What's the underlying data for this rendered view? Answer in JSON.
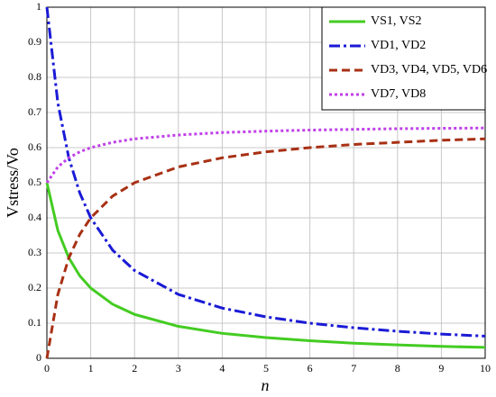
{
  "chart_data": {
    "type": "line",
    "xlabel": "n",
    "ylabel": "Vstress/Vo",
    "x": [
      0,
      0.25,
      0.5,
      0.75,
      1,
      1.5,
      2,
      3,
      4,
      5,
      6,
      7,
      8,
      9,
      10
    ],
    "series": [
      {
        "name": "VS1, VS2",
        "color": "#44cc22",
        "style": "solid",
        "values": [
          0.5,
          0.364,
          0.286,
          0.235,
          0.2,
          0.154,
          0.125,
          0.091,
          0.071,
          0.059,
          0.05,
          0.043,
          0.038,
          0.034,
          0.031
        ]
      },
      {
        "name": "VD1, VD2",
        "color": "#1a1ad6",
        "style": "dashdot",
        "values": [
          1,
          0.727,
          0.571,
          0.471,
          0.4,
          0.308,
          0.25,
          0.182,
          0.143,
          0.118,
          0.1,
          0.087,
          0.077,
          0.069,
          0.063
        ]
      },
      {
        "name": "VD3, VD4, VD5, VD6",
        "color": "#a83014",
        "style": "dashed",
        "values": [
          0,
          0.182,
          0.286,
          0.353,
          0.4,
          0.462,
          0.5,
          0.545,
          0.571,
          0.588,
          0.6,
          0.609,
          0.615,
          0.621,
          0.625
        ]
      },
      {
        "name": "VD7, VD8",
        "color": "#c040e8",
        "style": "dotted",
        "values": [
          0.5,
          0.545,
          0.571,
          0.588,
          0.6,
          0.615,
          0.625,
          0.636,
          0.643,
          0.647,
          0.65,
          0.652,
          0.654,
          0.655,
          0.656
        ]
      }
    ],
    "xlim": [
      0,
      10
    ],
    "xticks": [
      0,
      1,
      2,
      3,
      4,
      5,
      6,
      7,
      8,
      9,
      10
    ],
    "ylim": [
      0,
      1
    ],
    "yticks": [
      0,
      0.1,
      0.2,
      0.3,
      0.4,
      0.5,
      0.6,
      0.7,
      0.8,
      0.9,
      1
    ],
    "grid": true,
    "legend": "upper right"
  }
}
